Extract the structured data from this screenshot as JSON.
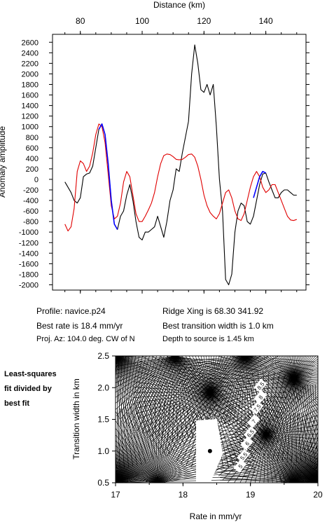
{
  "chart_data": [
    {
      "type": "line",
      "xlabel": "Distance (km)",
      "ylabel": "Anomaly amplitude",
      "xlim": [
        71,
        153
      ],
      "ylim": [
        -2100,
        2750
      ],
      "x_ticks": [
        80,
        100,
        120,
        140
      ],
      "y_ticks": [
        -2000,
        -1800,
        -1600,
        -1400,
        -1200,
        -1000,
        -800,
        -600,
        -400,
        -200,
        0,
        200,
        400,
        600,
        800,
        1000,
        1200,
        1400,
        1600,
        1800,
        2000,
        2200,
        2400,
        2600
      ],
      "series": [
        {
          "color": "#000000",
          "x": [
            75,
            76,
            77,
            78,
            79,
            80,
            81,
            82,
            83,
            84,
            85,
            86,
            87,
            88,
            89,
            90,
            91,
            92,
            93,
            94,
            95,
            96,
            97,
            98,
            99,
            100,
            101,
            102,
            103,
            104,
            105,
            106,
            107,
            108,
            109,
            110,
            111,
            112,
            113,
            114,
            115,
            116,
            117,
            118,
            119,
            120,
            121,
            122,
            123,
            124,
            125,
            126,
            127,
            128,
            129,
            130,
            131,
            132,
            133,
            134,
            135,
            136,
            137,
            138,
            139,
            140,
            141,
            142,
            143,
            144,
            145,
            146,
            147,
            148,
            149,
            150
          ],
          "y": [
            -50,
            -150,
            -250,
            -400,
            -450,
            -350,
            50,
            100,
            120,
            250,
            600,
            950,
            1050,
            850,
            300,
            -400,
            -850,
            -950,
            -700,
            -600,
            -300,
            -100,
            -400,
            -800,
            -1100,
            -1150,
            -1000,
            -1000,
            -950,
            -900,
            -700,
            -900,
            -1100,
            -800,
            -400,
            -200,
            200,
            150,
            500,
            800,
            1100,
            2000,
            2550,
            2200,
            1700,
            1650,
            1800,
            1600,
            1800,
            1000,
            0,
            -600,
            -1900,
            -2000,
            -1800,
            -1000,
            -600,
            -450,
            -500,
            -800,
            -850,
            -700,
            -400,
            -100,
            100,
            120,
            -50,
            -200,
            -350,
            -350,
            -250,
            -200,
            -200,
            -250,
            -300,
            -300
          ]
        },
        {
          "color": "#e00000",
          "x": [
            75,
            76,
            77,
            78,
            79,
            80,
            81,
            82,
            83,
            84,
            85,
            86,
            87,
            88,
            89,
            90,
            91,
            92,
            93,
            94,
            95,
            96,
            97,
            98,
            99,
            100,
            101,
            102,
            103,
            104,
            105,
            106,
            107,
            108,
            109,
            110,
            111,
            112,
            113,
            114,
            115,
            116,
            117,
            118,
            119,
            120,
            121,
            122,
            123,
            124,
            125,
            126,
            127,
            128,
            129,
            130,
            131,
            132,
            133,
            134,
            135,
            136,
            137,
            138,
            139,
            140,
            141,
            142,
            143,
            144,
            145,
            146,
            147,
            148,
            149,
            150
          ],
          "y": [
            -850,
            -980,
            -900,
            -550,
            150,
            350,
            300,
            150,
            250,
            500,
            850,
            1050,
            1000,
            700,
            100,
            -500,
            -750,
            -700,
            -450,
            -50,
            150,
            50,
            -300,
            -650,
            -800,
            -800,
            -700,
            -580,
            -450,
            -250,
            50,
            300,
            450,
            480,
            470,
            430,
            380,
            370,
            380,
            420,
            470,
            480,
            420,
            250,
            0,
            -300,
            -500,
            -630,
            -700,
            -750,
            -650,
            -450,
            -250,
            -200,
            -350,
            -600,
            -750,
            -780,
            -650,
            -400,
            -150,
            50,
            150,
            50,
            -150,
            -250,
            -200,
            -100,
            -100,
            -250,
            -400,
            -550,
            -700,
            -770,
            -780,
            -760
          ]
        },
        {
          "color": "#0000ff",
          "x": [
            86,
            87,
            88,
            89,
            90,
            91,
            92
          ],
          "y": [
            950,
            1050,
            850,
            300,
            -400,
            -850,
            -950
          ]
        },
        {
          "color": "#0000ff",
          "x": [
            136,
            137,
            138,
            139,
            140
          ],
          "y": [
            -350,
            -150,
            50,
            150,
            120
          ]
        }
      ]
    },
    {
      "type": "contour",
      "xlabel": "Rate in mm/yr",
      "ylabel": "Transition width in km",
      "xlim": [
        17,
        20
      ],
      "ylim": [
        0.5,
        2.5
      ],
      "x_ticks": [
        17,
        18,
        19,
        20
      ],
      "y_ticks": [
        "0.5",
        "1.0",
        "1.5",
        "2.0",
        "2.5"
      ],
      "best_fit": {
        "x": 18.4,
        "y": 1.0
      },
      "contour_labels": [
        "8.5",
        "8",
        "7.5",
        "7",
        "6.5",
        "6",
        "5.5",
        "5"
      ]
    }
  ],
  "info": {
    "profile": "Profile: navice.p24",
    "ridge": "Ridge Xing is 68.30 341.92",
    "rate": "Best rate is 18.4 mm/yr",
    "width": "Best transition width is 1.0 km",
    "az": "Proj. Az: 104.0 deg. CW of N",
    "depth": "Depth to source is   1.45 km"
  },
  "side_label": [
    "Least-squares",
    "fit divided by",
    "best fit"
  ]
}
